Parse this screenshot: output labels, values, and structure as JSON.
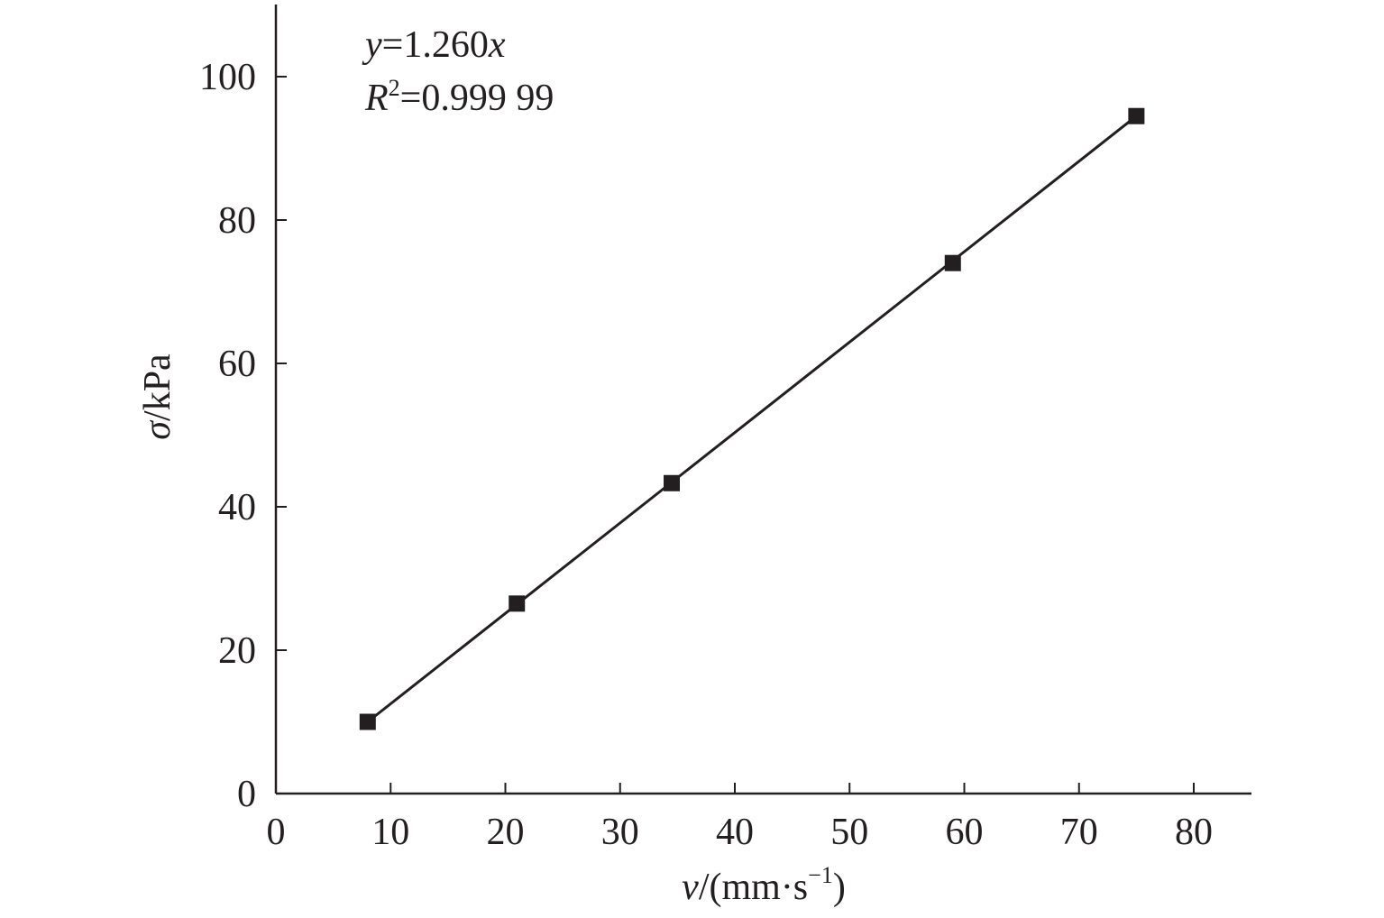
{
  "chart_data": {
    "type": "scatter",
    "title": "",
    "x": [
      8,
      21,
      34.5,
      59,
      75
    ],
    "series": [
      {
        "values": [
          10,
          26.5,
          43.3,
          74,
          94.5
        ],
        "marker": "square",
        "color": "#231f20"
      }
    ],
    "fit": {
      "slope": 1.26,
      "x_range": [
        8,
        75
      ]
    },
    "xlim": [
      0,
      85
    ],
    "ylim": [
      0,
      110
    ],
    "xticks": [
      "0",
      "10",
      "20",
      "30",
      "40",
      "50",
      "60",
      "70",
      "80"
    ],
    "yticks": [
      "0",
      "20",
      "40",
      "60",
      "80",
      "100"
    ],
    "xlabel": {
      "var": "v",
      "unit_open": "/(mm·s",
      "sup": "−1",
      "unit_close": ")"
    },
    "ylabel": {
      "var": "σ",
      "unit": "/kPa"
    },
    "annotation": {
      "eq_var": "y",
      "eq_rest": "=1.260",
      "eq_x": "x",
      "r_var": "R",
      "r_sup": "2",
      "r_rest": "=0.999 99"
    },
    "grid": false,
    "legend": "none"
  }
}
